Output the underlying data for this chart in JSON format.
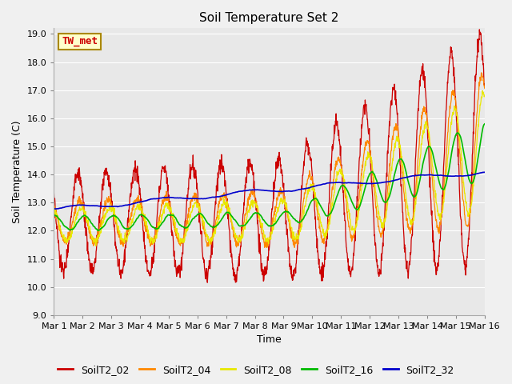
{
  "title": "Soil Temperature Set 2",
  "xlabel": "Time",
  "ylabel": "Soil Temperature (C)",
  "ylim": [
    9.0,
    19.2
  ],
  "yticks": [
    9.0,
    10.0,
    11.0,
    12.0,
    13.0,
    14.0,
    15.0,
    16.0,
    17.0,
    18.0,
    19.0
  ],
  "ytick_labels": [
    "9.0",
    "10.0",
    "11.0",
    "12.0",
    "13.0",
    "14.0",
    "15.0",
    "16.0",
    "17.0",
    "18.0",
    "19.0"
  ],
  "xtick_labels": [
    "Mar 1",
    "Mar 2",
    "Mar 3",
    "Mar 4",
    "Mar 5",
    "Mar 6",
    "Mar 7",
    "Mar 8",
    "Mar 9",
    "Mar 10",
    "Mar 11",
    "Mar 12",
    "Mar 13",
    "Mar 14",
    "Mar 15",
    "Mar 16"
  ],
  "fig_bg_color": "#f0f0f0",
  "plot_bg_color": "#e8e8e8",
  "grid_color": "#ffffff",
  "series_colors": {
    "SoilT2_02": "#cc0000",
    "SoilT2_04": "#ff8800",
    "SoilT2_08": "#e8e800",
    "SoilT2_16": "#00bb00",
    "SoilT2_32": "#0000cc"
  },
  "annotation_text": "TW_met",
  "annotation_color": "#cc0000",
  "annotation_bg": "#ffffcc",
  "annotation_border": "#aa8800",
  "title_fontsize": 11,
  "axis_fontsize": 9,
  "tick_fontsize": 8,
  "legend_fontsize": 9
}
